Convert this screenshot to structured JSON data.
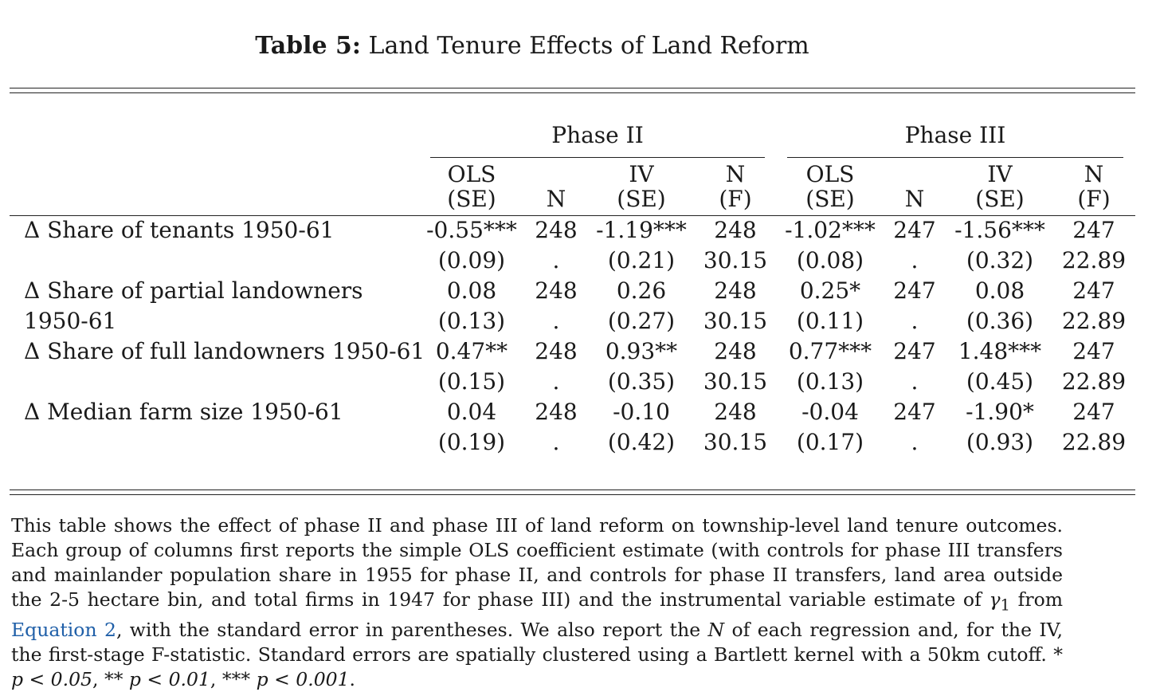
{
  "caption": {
    "label": "Table 5:",
    "title": "Land Tenure Effects of Land Reform"
  },
  "groups": [
    {
      "label": "Phase II"
    },
    {
      "label": "Phase III"
    }
  ],
  "col_headers": [
    {
      "line1": "OLS",
      "line2": "(SE)"
    },
    {
      "line1": "",
      "line2": "N"
    },
    {
      "line1": "IV",
      "line2": "(SE)"
    },
    {
      "line1": "N",
      "line2": "(F)"
    },
    {
      "line1": "OLS",
      "line2": "(SE)"
    },
    {
      "line1": "",
      "line2": "N"
    },
    {
      "line1": "IV",
      "line2": "(SE)"
    },
    {
      "line1": "N",
      "line2": "(F)"
    }
  ],
  "rows": [
    {
      "label": "Δ Share of tenants 1950-61",
      "top": [
        "-0.55***",
        "248",
        "-1.19***",
        "248",
        "-1.02***",
        "247",
        "-1.56***",
        "247"
      ],
      "bottom": [
        "(0.09)",
        ".",
        "(0.21)",
        "30.15",
        "(0.08)",
        ".",
        "(0.32)",
        "22.89"
      ]
    },
    {
      "label": "Δ Share of partial landowners",
      "label2": "1950-61",
      "top": [
        "0.08",
        "248",
        "0.26",
        "248",
        "0.25*",
        "247",
        "0.08",
        "247"
      ],
      "bottom": [
        "(0.13)",
        ".",
        "(0.27)",
        "30.15",
        "(0.11)",
        ".",
        "(0.36)",
        "22.89"
      ]
    },
    {
      "label": "Δ Share of full landowners 1950-61",
      "top": [
        "0.47**",
        "248",
        "0.93**",
        "248",
        "0.77***",
        "247",
        "1.48***",
        "247"
      ],
      "bottom": [
        "(0.15)",
        ".",
        "(0.35)",
        "30.15",
        "(0.13)",
        ".",
        "(0.45)",
        "22.89"
      ]
    },
    {
      "label": "Δ Median farm size 1950-61",
      "top": [
        "0.04",
        "248",
        "-0.10",
        "248",
        "-0.04",
        "247",
        "-1.90*",
        "247"
      ],
      "bottom": [
        "(0.19)",
        ".",
        "(0.42)",
        "30.15",
        "(0.17)",
        ".",
        "(0.93)",
        "22.89"
      ]
    }
  ],
  "note": {
    "part1": "This table shows the effect of phase II and phase III of land reform on township-level land tenure outcomes. Each group of columns first reports the simple OLS coefficient estimate (with controls for phase III transfers and mainlander population share in 1955 for phase II, and controls for phase II transfers, land area outside the 2-5 hectare bin, and total firms in 1947 for phase III) and the instrumental variable estimate of ",
    "gamma": "γ",
    "gamma_sub": "1",
    "part2": " from ",
    "link": "Equation 2",
    "part3": ", with the standard error in parentheses. We also report the ",
    "N": "N",
    "part4": " of each regression and, for the IV, the first-stage F-statistic. Standard errors are spatially clustered using a Bartlett kernel with a 50km cutoff. * ",
    "p1": "p < 0.05",
    "part5": ", ** ",
    "p2": "p < 0.01",
    "part6": ", *** ",
    "p3": "p < 0.001",
    "part7": "."
  }
}
